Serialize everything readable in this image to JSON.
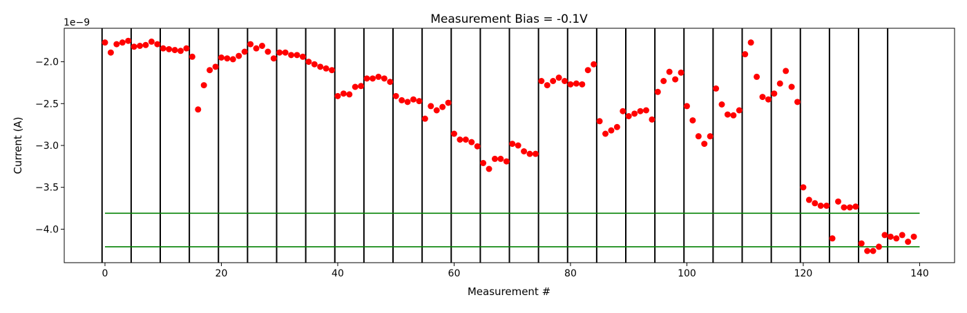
{
  "chart_data": {
    "type": "scatter",
    "title": "Measurement Bias = -0.1V",
    "xlabel": "Measurement #",
    "ylabel": "Current (A)",
    "y_offset_label": "1e−9",
    "xlim": [
      -7,
      146
    ],
    "ylim": [
      -4.4,
      -1.6
    ],
    "xticks": [
      0,
      20,
      40,
      60,
      80,
      100,
      120,
      140
    ],
    "yticks": [
      -4.0,
      -3.5,
      -3.0,
      -2.5,
      -2.0
    ],
    "ytick_labels": [
      "−4.0",
      "−3.5",
      "−3.0",
      "−2.5",
      "−2.0"
    ],
    "grid": false,
    "marker_color": "#ff0000",
    "vline_color": "#000000",
    "hline_color": "#008000",
    "vlines": [
      -0.5,
      4.5,
      9.5,
      14.5,
      19.5,
      24.5,
      29.5,
      34.5,
      39.5,
      44.5,
      49.5,
      54.5,
      59.5,
      64.5,
      69.5,
      74.5,
      79.5,
      84.5,
      89.5,
      94.5,
      99.5,
      104.5,
      109.5,
      114.5,
      119.5,
      124.5,
      129.5,
      134.5
    ],
    "hlines": [
      {
        "y": -3.81,
        "xmin": 0,
        "xmax": 140
      },
      {
        "y": -4.21,
        "xmin": 0,
        "xmax": 140
      }
    ],
    "series": [
      {
        "x": [
          0,
          1,
          2,
          3,
          4,
          5,
          6,
          7,
          8,
          9,
          10,
          11,
          12,
          13,
          14,
          15,
          16,
          17,
          18,
          19,
          20,
          21,
          22,
          23,
          24,
          25,
          26,
          27,
          28,
          29,
          30,
          31,
          32,
          33,
          34,
          35,
          36,
          37,
          38,
          39,
          40,
          41,
          42,
          43,
          44,
          45,
          46,
          47,
          48,
          49,
          50,
          51,
          52,
          53,
          54,
          55,
          56,
          57,
          58,
          59,
          60,
          61,
          62,
          63,
          64,
          65,
          66,
          67,
          68,
          69,
          70,
          71,
          72,
          73,
          74,
          75,
          76,
          77,
          78,
          79,
          80,
          81,
          82,
          83,
          84,
          85,
          86,
          87,
          88,
          89,
          90,
          91,
          92,
          93,
          94,
          95,
          96,
          97,
          98,
          99,
          100,
          101,
          102,
          103,
          104,
          105,
          106,
          107,
          108,
          109,
          110,
          111,
          112,
          113,
          114,
          115,
          116,
          117,
          118,
          119,
          120,
          121,
          122,
          123,
          124,
          125,
          126,
          127,
          128,
          129,
          130,
          131,
          132,
          133,
          134,
          135,
          136,
          137,
          138,
          139
        ],
        "y": [
          -1.77,
          -1.89,
          -1.79,
          -1.77,
          -1.75,
          -1.82,
          -1.81,
          -1.8,
          -1.76,
          -1.79,
          -1.84,
          -1.85,
          -1.86,
          -1.87,
          -1.84,
          -1.94,
          -2.57,
          -2.28,
          -2.1,
          -2.06,
          -1.95,
          -1.96,
          -1.97,
          -1.93,
          -1.88,
          -1.79,
          -1.84,
          -1.81,
          -1.88,
          -1.96,
          -1.89,
          -1.89,
          -1.92,
          -1.92,
          -1.94,
          -2,
          -2.03,
          -2.06,
          -2.08,
          -2.1,
          -2.41,
          -2.38,
          -2.39,
          -2.3,
          -2.29,
          -2.2,
          -2.2,
          -2.18,
          -2.2,
          -2.24,
          -2.41,
          -2.46,
          -2.48,
          -2.45,
          -2.47,
          -2.68,
          -2.53,
          -2.58,
          -2.54,
          -2.49,
          -2.86,
          -2.93,
          -2.93,
          -2.96,
          -3.01,
          -3.21,
          -3.28,
          -3.16,
          -3.16,
          -3.19,
          -2.98,
          -3,
          -3.07,
          -3.1,
          -3.1,
          -2.23,
          -2.28,
          -2.23,
          -2.19,
          -2.23,
          -2.27,
          -2.26,
          -2.27,
          -2.1,
          -2.03,
          -2.71,
          -2.86,
          -2.82,
          -2.78,
          -2.59,
          -2.65,
          -2.62,
          -2.59,
          -2.58,
          -2.69,
          -2.36,
          -2.23,
          -2.12,
          -2.21,
          -2.13,
          -2.53,
          -2.7,
          -2.89,
          -2.98,
          -2.89,
          -2.32,
          -2.51,
          -2.63,
          -2.64,
          -2.58,
          -1.91,
          -1.77,
          -2.18,
          -2.42,
          -2.45,
          -2.38,
          -2.26,
          -2.11,
          -2.3,
          -2.48,
          -3.5,
          -3.65,
          -3.69,
          -3.72,
          -3.72,
          -4.11,
          -3.67,
          -3.74,
          -3.74,
          -3.73,
          -4.17,
          -4.26,
          -4.26,
          -4.21,
          -4.07,
          -4.09,
          -4.11,
          -4.07,
          -4.15,
          -4.09
        ]
      }
    ]
  }
}
